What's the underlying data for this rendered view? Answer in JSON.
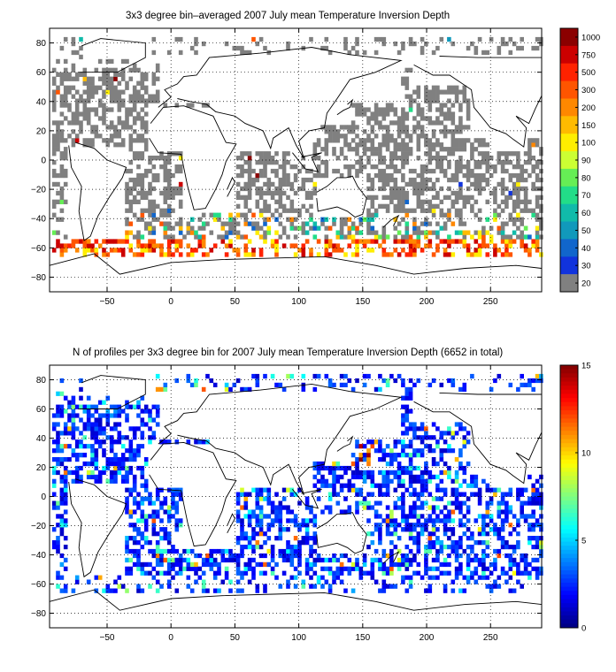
{
  "chart_data": [
    {
      "type": "heatmap",
      "title": "3x3 degree bin–averaged 2007 July mean Temperature Inversion Depth",
      "xlabel": "",
      "ylabel": "",
      "xlim": [
        -95,
        290
      ],
      "ylim": [
        -90,
        90
      ],
      "x_ticks": [
        "−50",
        "0",
        "50",
        "100",
        "150",
        "200",
        "250"
      ],
      "x_tick_values": [
        -50,
        0,
        50,
        100,
        150,
        200,
        250
      ],
      "y_ticks": [
        "80",
        "60",
        "40",
        "20",
        "0",
        "−20",
        "−40",
        "−60",
        "−80"
      ],
      "y_tick_values": [
        80,
        60,
        40,
        20,
        0,
        -20,
        -40,
        -60,
        -80
      ],
      "grid": true,
      "colorbar": {
        "type": "categorical",
        "labels": [
          "1000",
          "750",
          "500",
          "300",
          "200",
          "150",
          "100",
          "90",
          "80",
          "70",
          "60",
          "50",
          "40",
          "30",
          "20"
        ],
        "colors": [
          "#8b0000",
          "#cc0000",
          "#ff2200",
          "#ff5500",
          "#ff8800",
          "#ffbb00",
          "#ffee00",
          "#ccff33",
          "#66ee55",
          "#22dd88",
          "#11bbaa",
          "#1199bb",
          "#1166cc",
          "#1133dd",
          "#808080"
        ]
      },
      "summary": "Most ocean bins in the 20 (grey) class; deeper inversions (300-1000) concentrated in the Southern Ocean around 55-65S"
    },
    {
      "type": "heatmap",
      "title": "N of profiles per 3x3 degree bin for 2007 July mean Temperature Inversion Depth  (6652 in total)",
      "total_profiles": 6652,
      "xlabel": "",
      "ylabel": "",
      "xlim": [
        -95,
        290
      ],
      "ylim": [
        -90,
        90
      ],
      "x_ticks": [
        "−50",
        "0",
        "50",
        "100",
        "150",
        "200",
        "250"
      ],
      "x_tick_values": [
        -50,
        0,
        50,
        100,
        150,
        200,
        250
      ],
      "y_ticks": [
        "80",
        "60",
        "40",
        "20",
        "0",
        "−20",
        "−40",
        "−60",
        "−80"
      ],
      "y_tick_values": [
        80,
        60,
        40,
        20,
        0,
        -20,
        -40,
        -60,
        -80
      ],
      "grid": true,
      "colorbar": {
        "type": "continuous",
        "range": [
          0,
          15
        ],
        "tick_labels": [
          "15",
          "10",
          "5",
          "0"
        ],
        "tick_values": [
          15,
          10,
          5,
          0
        ],
        "colormap": "jet"
      },
      "summary": "Most bins hold 1-3 profiles (blue); highest counts (10-15) near 130-150E, 25-40N"
    }
  ]
}
